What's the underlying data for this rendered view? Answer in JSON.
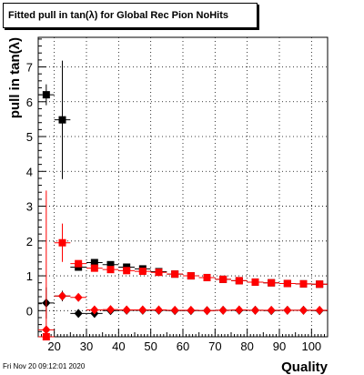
{
  "title": "Fitted pull in tan(λ) for Global Rec Pion NoHits",
  "timestamp": "Fri Nov 20 09:12:01 2020",
  "chart_data": {
    "type": "scatter",
    "title": "Fitted pull in tan(λ) for Global Rec Pion NoHits",
    "xlabel": "Quality",
    "ylabel": "pull in tan(λ)",
    "xlim": [
      15,
      105
    ],
    "ylim": [
      -0.75,
      7.85
    ],
    "xticks": [
      20,
      30,
      40,
      50,
      60,
      70,
      80,
      90,
      100
    ],
    "yticks": [
      0,
      1,
      2,
      3,
      4,
      5,
      6,
      7
    ],
    "grid": true,
    "series": [
      {
        "marker": "square",
        "color": "#000000",
        "x": [
          17.5,
          22.5,
          27.5,
          32.5,
          37.5,
          42.5,
          47.5,
          52.5,
          57.5,
          62.5,
          67.5,
          72.5,
          77.5,
          82.5,
          87.5,
          92.5,
          97.5,
          102.5
        ],
        "y": [
          6.2,
          5.48,
          1.25,
          1.38,
          1.32,
          1.25,
          1.2,
          1.12,
          1.05,
          1.0,
          0.95,
          0.9,
          0.86,
          0.82,
          0.8,
          0.78,
          0.77,
          0.76
        ],
        "yerr": [
          0.3,
          1.7,
          0.06,
          0.05,
          0.04,
          0.04,
          0.03,
          0.03,
          0.03,
          0.03,
          0.03,
          0.03,
          0.03,
          0.03,
          0.03,
          0.03,
          0.03,
          0.03
        ]
      },
      {
        "marker": "square",
        "color": "#ff0000",
        "x": [
          17.5,
          22.5,
          27.5,
          32.5,
          37.5,
          42.5,
          47.5,
          52.5,
          57.5,
          62.5,
          67.5,
          72.5,
          77.5,
          82.5,
          87.5,
          92.5,
          97.5,
          102.5
        ],
        "y": [
          -0.75,
          1.95,
          1.35,
          1.22,
          1.18,
          1.15,
          1.13,
          1.1,
          1.05,
          1.0,
          0.95,
          0.9,
          0.86,
          0.82,
          0.8,
          0.78,
          0.77,
          0.76
        ],
        "yerr": [
          0,
          0.55,
          0.08,
          0.05,
          0.05,
          0.04,
          0.04,
          0.03,
          0.03,
          0.03,
          0.03,
          0.03,
          0.03,
          0.03,
          0.03,
          0.03,
          0.03,
          0.03
        ]
      },
      {
        "marker": "diamond",
        "color": "#000000",
        "x": [
          17.5,
          22.5,
          27.5,
          32.5,
          37.5,
          42.5,
          47.5,
          52.5,
          57.5,
          62.5,
          67.5,
          72.5,
          77.5,
          82.5,
          87.5,
          92.5,
          97.5,
          102.5
        ],
        "y": [
          0.22,
          0.42,
          -0.08,
          -0.08,
          0.0,
          0.01,
          0.01,
          0.01,
          0.0,
          0.0,
          0.0,
          0.01,
          0.01,
          0.01,
          0.0,
          0.01,
          0.01,
          0.0
        ],
        "yerr": [
          0.45,
          0.15,
          0.06,
          0.05,
          0.04,
          0.04,
          0.03,
          0.03,
          0.03,
          0.03,
          0.03,
          0.03,
          0.03,
          0.03,
          0.03,
          0.03,
          0.03,
          0.03
        ]
      },
      {
        "marker": "diamond",
        "color": "#ff0000",
        "x": [
          17.5,
          22.5,
          27.5,
          32.5,
          37.5,
          42.5,
          47.5,
          52.5,
          57.5,
          62.5,
          67.5,
          72.5,
          77.5,
          82.5,
          87.5,
          92.5,
          97.5,
          102.5
        ],
        "y": [
          -0.55,
          0.42,
          0.38,
          0.02,
          0.03,
          0.02,
          0.02,
          0.02,
          0.01,
          0.01,
          0.0,
          0.01,
          0.02,
          0.01,
          0.01,
          0.01,
          0.01,
          0.01
        ],
        "yerr": [
          4.0,
          0.1,
          0.05,
          0.04,
          0.04,
          0.03,
          0.03,
          0.03,
          0.03,
          0.03,
          0.03,
          0.03,
          0.03,
          0.03,
          0.03,
          0.03,
          0.03,
          0.03
        ]
      }
    ]
  }
}
